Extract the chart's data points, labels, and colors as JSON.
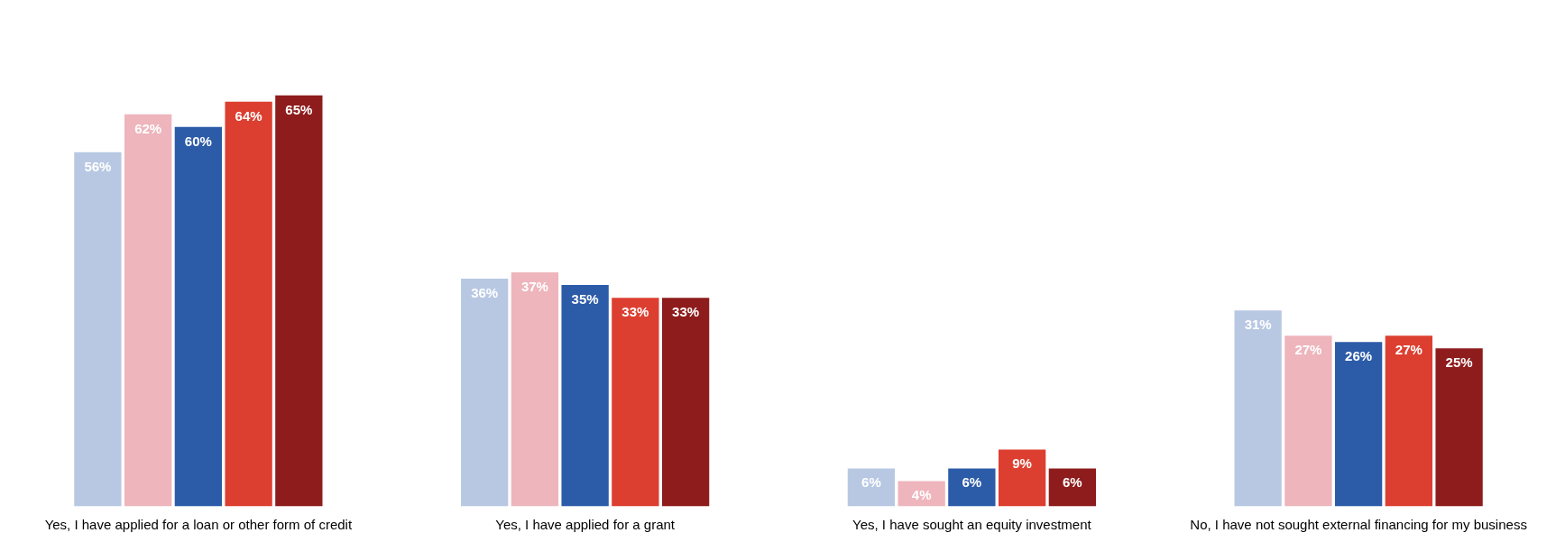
{
  "chart_data": {
    "type": "bar",
    "categories": [
      "Yes, I have applied for a loan or other form of credit",
      "Yes, I have applied for a grant",
      "Yes, I have sought an equity investment",
      "No, I have not sought external financing for my business"
    ],
    "series": [
      {
        "color": "#b8c8e3",
        "values": [
          56,
          36,
          6,
          31
        ],
        "value_labels": [
          "56%",
          "36%",
          "6%",
          "31%"
        ]
      },
      {
        "color": "#eeb5bc",
        "values": [
          62,
          37,
          4,
          27
        ],
        "value_labels": [
          "62%",
          "37%",
          "4%",
          "27%"
        ]
      },
      {
        "color": "#2c5ba8",
        "values": [
          60,
          35,
          6,
          26
        ],
        "value_labels": [
          "60%",
          "35%",
          "6%",
          "26%"
        ]
      },
      {
        "color": "#dc3f30",
        "values": [
          64,
          33,
          9,
          27
        ],
        "value_labels": [
          "64%",
          "33%",
          "9%",
          "27%"
        ]
      },
      {
        "color": "#8e1c1c",
        "values": [
          65,
          33,
          6,
          25
        ],
        "value_labels": [
          "65%",
          "33%",
          "6%",
          "25%"
        ]
      }
    ]
  }
}
